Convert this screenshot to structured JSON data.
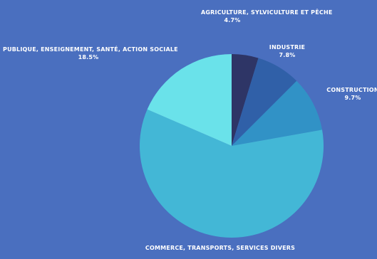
{
  "colors": {
    "background": "#4a6fbf",
    "slices": [
      "#2e3566",
      "#3060a8",
      "#3192c6",
      "#43b7d6",
      "#6ae2ea"
    ]
  },
  "chart_data": {
    "type": "pie",
    "title": "",
    "slices": [
      {
        "name": "AGRICULTURE, SYLVICULTURE ET PÊCHE",
        "value": 4.7,
        "label": "4.7%"
      },
      {
        "name": "INDUSTRIE",
        "value": 7.8,
        "label": "7.8%"
      },
      {
        "name": "CONSTRUCTION",
        "value": 9.7,
        "label": "9.7%"
      },
      {
        "name": "COMMERCE, TRANSPORTS, SERVICES DIVERS",
        "value": 59.3,
        "label": ""
      },
      {
        "name": "PUBLIQUE, ENSEIGNEMENT, SANTÉ, ACTION SOCIALE",
        "value": 18.5,
        "label": "18.5%"
      }
    ]
  }
}
